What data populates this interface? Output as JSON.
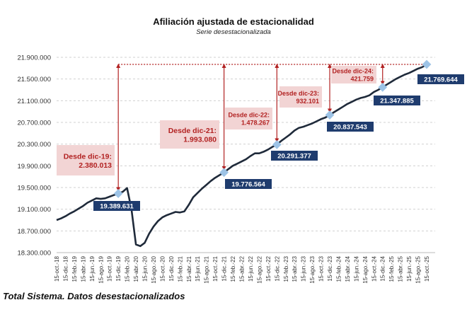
{
  "chart_data": {
    "type": "line",
    "title": "Afiliación ajustada de estacionalidad",
    "subtitle": "Serie desestacionalizada",
    "footer": "Total Sistema. Datos desestacionalizados",
    "ylim": [
      18300000,
      21900000
    ],
    "yticks": [
      18300000,
      18700000,
      19100000,
      19500000,
      19900000,
      20300000,
      20700000,
      21100000,
      21500000,
      21900000
    ],
    "ytick_labels": [
      "18.300.000",
      "18.700.000",
      "19.100.000",
      "19.500.000",
      "19.900.000",
      "20.300.000",
      "20.700.000",
      "21.100.000",
      "21.500.000",
      "21.900.000"
    ],
    "xtick_labels": [
      "15-oct.-18",
      "15-dic.-18",
      "15-feb.-19",
      "15-abr.-19",
      "15-jun.-19",
      "15-ago.-19",
      "15-oct.-19",
      "15-dic.-19",
      "15-feb.-20",
      "15-abr.-20",
      "15-jun.-20",
      "15-ago.-20",
      "15-oct.-20",
      "15-dic.-20",
      "15-feb.-21",
      "15-abr.-21",
      "15-jun.-21",
      "15-ago.-21",
      "15-oct.-21",
      "15-dic.-21",
      "15-feb.-22",
      "15-abr.-22",
      "15-jun.-22",
      "15-ago.-22",
      "15-oct.-22",
      "15-dic.-22",
      "15-feb.-23",
      "15-abr.-23",
      "15-jun.-23",
      "15-ago.-23",
      "15-oct.-23",
      "15-dic.-23",
      "15-feb.-24",
      "15-abr.-24",
      "15-jun.-24",
      "15-ago.-24",
      "15-oct.-24",
      "15-dic.-24",
      "15-feb.-25",
      "15-abr.-25",
      "15-jun.-25",
      "15-ago.-25",
      "15-oct.-25"
    ],
    "x_start": "2018-10",
    "x_end": "2025-10",
    "x_frequency": "monthly",
    "grid": "horizontal dashed",
    "line_color": "#1f2a3a",
    "marker_color": "#9dc3e6",
    "annotation_color": "#b22222",
    "annotation_bg": "#f2d4d4",
    "label_bg": "#1f3c6e",
    "values": [
      18900000,
      18930000,
      18970000,
      19020000,
      19060000,
      19110000,
      19160000,
      19220000,
      19260000,
      19300000,
      19290000,
      19300000,
      19330000,
      19360000,
      19389631,
      19420000,
      19490000,
      19100000,
      18450000,
      18420000,
      18480000,
      18650000,
      18780000,
      18880000,
      18950000,
      18990000,
      19020000,
      19050000,
      19040000,
      19060000,
      19180000,
      19320000,
      19400000,
      19480000,
      19550000,
      19620000,
      19680000,
      19730000,
      19776564,
      19840000,
      19900000,
      19940000,
      19980000,
      20020000,
      20080000,
      20130000,
      20130000,
      20160000,
      20200000,
      20250000,
      20291377,
      20360000,
      20420000,
      20480000,
      20550000,
      20600000,
      20620000,
      20650000,
      20680000,
      20720000,
      20760000,
      20790000,
      20837543,
      20890000,
      20940000,
      20990000,
      21040000,
      21080000,
      21120000,
      21150000,
      21170000,
      21200000,
      21260000,
      21300000,
      21347885,
      21400000,
      21450000,
      21500000,
      21540000,
      21580000,
      21610000,
      21650000,
      21690000,
      21720000,
      21769644
    ],
    "highlighted_points": [
      {
        "date": "2019-12",
        "value": 19389631,
        "label": "19.389.631"
      },
      {
        "date": "2021-12",
        "value": 19776564,
        "label": "19.776.564"
      },
      {
        "date": "2022-12",
        "value": 20291377,
        "label": "20.291.377"
      },
      {
        "date": "2023-12",
        "value": 20837543,
        "label": "20.837.543"
      },
      {
        "date": "2024-12",
        "value": 21347885,
        "label": "21.347.885"
      },
      {
        "date": "2025-10",
        "value": 21769644,
        "label": "21.769.644"
      }
    ],
    "annotations": [
      {
        "from": "2019-12",
        "line1": "Desde dic-19:",
        "line2": "2.380.013"
      },
      {
        "from": "2021-12",
        "line1": "Desde dic-21:",
        "line2": "1.993.080"
      },
      {
        "from": "2022-12",
        "line1": "Desde dic-22:",
        "line2": "1.478.267"
      },
      {
        "from": "2023-12",
        "line1": "Desde dic-23:",
        "line2": "932.101"
      },
      {
        "from": "2024-12",
        "line1": "Desde dic-24:",
        "line2": "421.759"
      }
    ]
  }
}
